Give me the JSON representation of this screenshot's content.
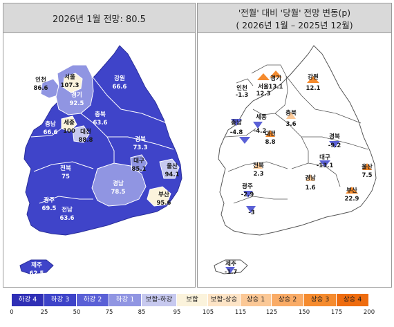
{
  "left_panel": {
    "title": "2026년 1월 전망: 80.5",
    "regions": [
      {
        "name": "인천",
        "value": "86.6"
      },
      {
        "name": "서울",
        "value": "107.3"
      },
      {
        "name": "경기",
        "value": "92.5"
      },
      {
        "name": "강원",
        "value": "66.6"
      },
      {
        "name": "충북",
        "value": "63.6"
      },
      {
        "name": "충남",
        "value": "66.6"
      },
      {
        "name": "세종",
        "value": "100"
      },
      {
        "name": "대전",
        "value": "88.8"
      },
      {
        "name": "경북",
        "value": "73.3"
      },
      {
        "name": "전북",
        "value": "75"
      },
      {
        "name": "대구",
        "value": "85.1"
      },
      {
        "name": "울산",
        "value": "94.1"
      },
      {
        "name": "경남",
        "value": "78.5"
      },
      {
        "name": "광주",
        "value": "69.5"
      },
      {
        "name": "전남",
        "value": "63.6"
      },
      {
        "name": "부산",
        "value": "95.6"
      },
      {
        "name": "제주",
        "value": "62.5"
      }
    ]
  },
  "right_panel": {
    "title_line1": "'전월' 대비 '당월' 전망 변동(p)",
    "title_line2": "( 2026년 1월 –   2025년 12월)",
    "regions": [
      {
        "name": "인천",
        "value": "-1.3"
      },
      {
        "name": "서울",
        "value": "12.3"
      },
      {
        "name": "경기",
        "value": "13.1"
      },
      {
        "name": "강원",
        "value": "12.1"
      },
      {
        "name": "세종",
        "value": "-4.2"
      },
      {
        "name": "충북",
        "value": "3.6"
      },
      {
        "name": "충남",
        "value": "-4.8"
      },
      {
        "name": "대전",
        "value": "8.8"
      },
      {
        "name": "경북",
        "value": "-9.2"
      },
      {
        "name": "전북",
        "value": "2.3"
      },
      {
        "name": "대구",
        "value": "-13.1"
      },
      {
        "name": "울산",
        "value": "7.5"
      },
      {
        "name": "광주",
        "value": "-2.9"
      },
      {
        "name": "경남",
        "value": "1.6"
      },
      {
        "name": "부산",
        "value": "22.9"
      },
      {
        "name": "전남",
        "value": "-3"
      },
      {
        "name": "제주",
        "value": "-1.7"
      }
    ]
  },
  "legend": {
    "items": [
      {
        "label": "하강 4",
        "color": "#2f2fb5"
      },
      {
        "label": "하강 3",
        "color": "#3d43c8"
      },
      {
        "label": "하강 2",
        "color": "#5a60d6"
      },
      {
        "label": "하강 1",
        "color": "#9095e2"
      },
      {
        "label": "보합-하강",
        "color": "#c7c9ef"
      },
      {
        "label": "보합",
        "color": "#fbf3dc"
      },
      {
        "label": "보합-상승",
        "color": "#fde4c6"
      },
      {
        "label": "상승 1",
        "color": "#fbc896"
      },
      {
        "label": "상승 2",
        "color": "#f9ab66"
      },
      {
        "label": "상승 3",
        "color": "#f58b2e"
      },
      {
        "label": "상승 4",
        "color": "#ee6c0f"
      }
    ],
    "ticks": [
      "0",
      "25",
      "50",
      "75",
      "85",
      "95",
      "105",
      "115",
      "125",
      "150",
      "175",
      "200"
    ]
  },
  "colors": {
    "header_bg": "#d9d9d9",
    "down_deep": "#3f44c9",
    "down_mid": "#5a60d6",
    "down_light": "#9095e2",
    "down_pale": "#c7c9ef",
    "neutral": "#fbf3dc",
    "up_orange": "#f58b2e"
  }
}
